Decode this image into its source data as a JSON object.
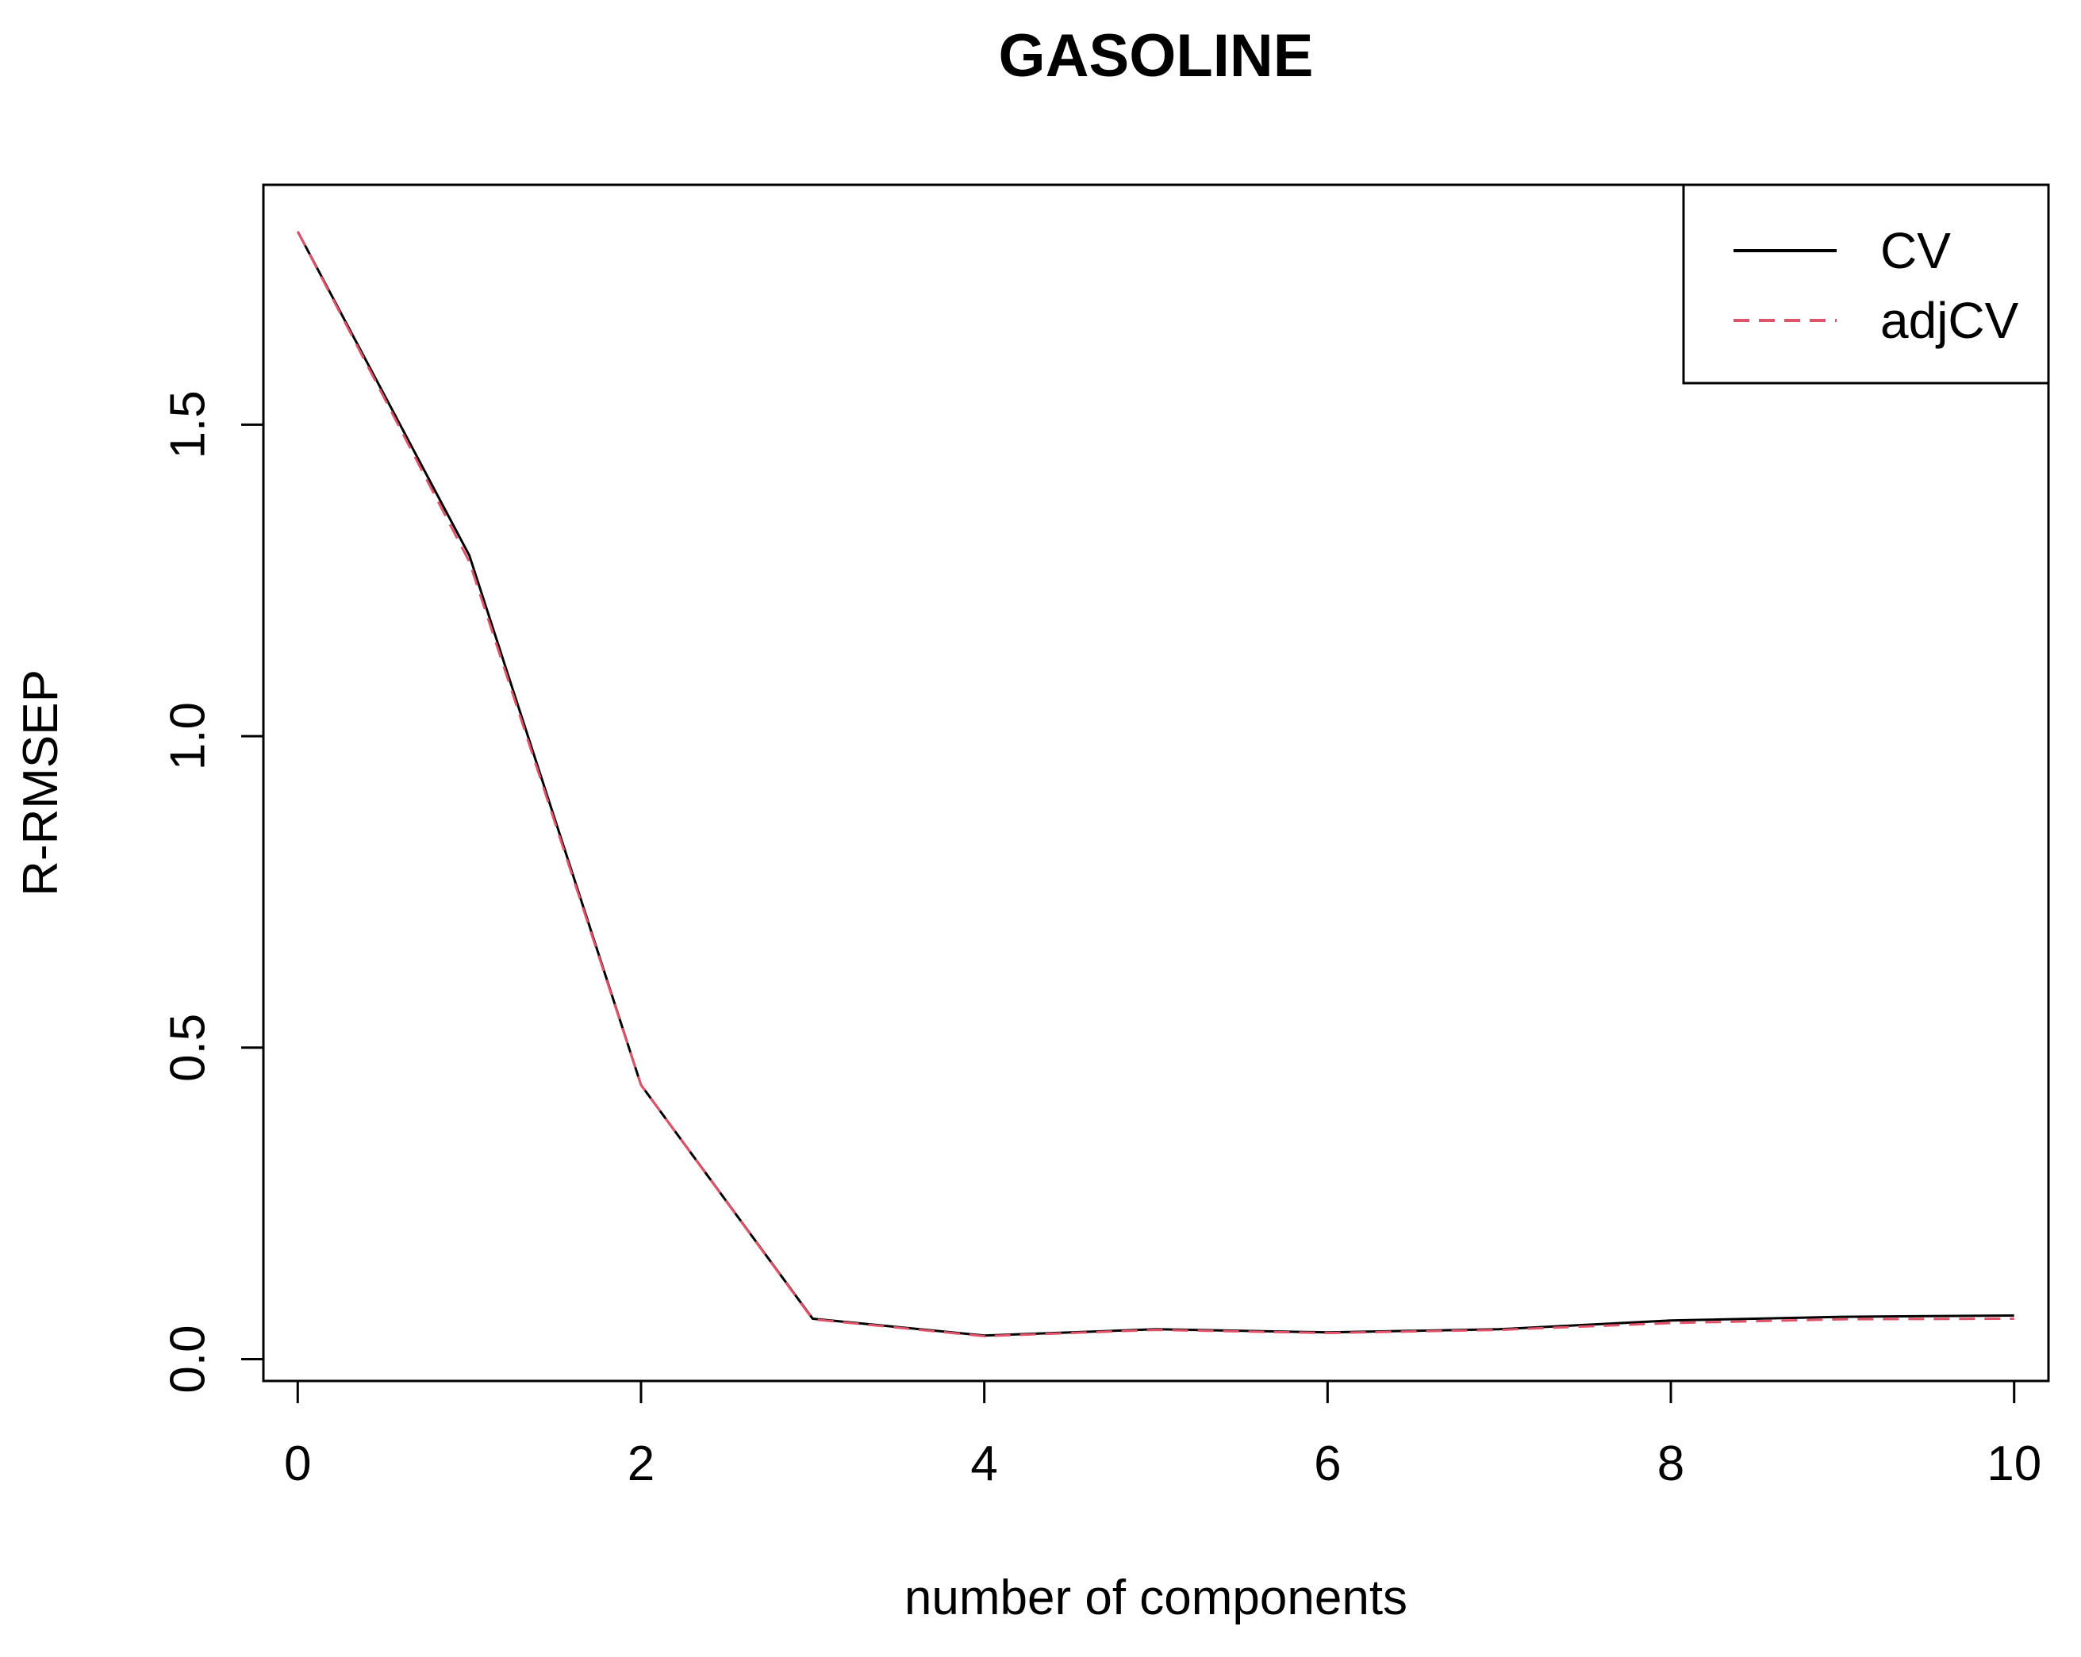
{
  "chart_data": {
    "type": "line",
    "title": "GASOLINE",
    "xlabel": "number of components",
    "ylabel": "R-RMSEP",
    "xlim": [
      -0.2,
      10.2
    ],
    "ylim": [
      -0.035,
      1.885
    ],
    "x_ticks": [
      0,
      2,
      4,
      6,
      8,
      10
    ],
    "x_tick_labels": [
      "0",
      "2",
      "4",
      "6",
      "8",
      "10"
    ],
    "y_ticks": [
      0.0,
      0.5,
      1.0,
      1.5
    ],
    "y_tick_labels": [
      "0.0",
      "0.5",
      "1.0",
      "1.5"
    ],
    "grid": false,
    "legend_position": "top-right",
    "x": [
      0,
      1,
      2,
      3,
      4,
      5,
      6,
      7,
      8,
      9,
      10
    ],
    "series": [
      {
        "name": "CV",
        "color": "#000000",
        "dash": "solid",
        "values": [
          1.81,
          1.29,
          0.44,
          0.065,
          0.038,
          0.048,
          0.043,
          0.048,
          0.062,
          0.068,
          0.07
        ]
      },
      {
        "name": "adjCV",
        "color": "#DF536B",
        "dash": "dashed",
        "values": [
          1.81,
          1.28,
          0.44,
          0.064,
          0.037,
          0.047,
          0.042,
          0.047,
          0.058,
          0.064,
          0.065
        ]
      }
    ]
  }
}
